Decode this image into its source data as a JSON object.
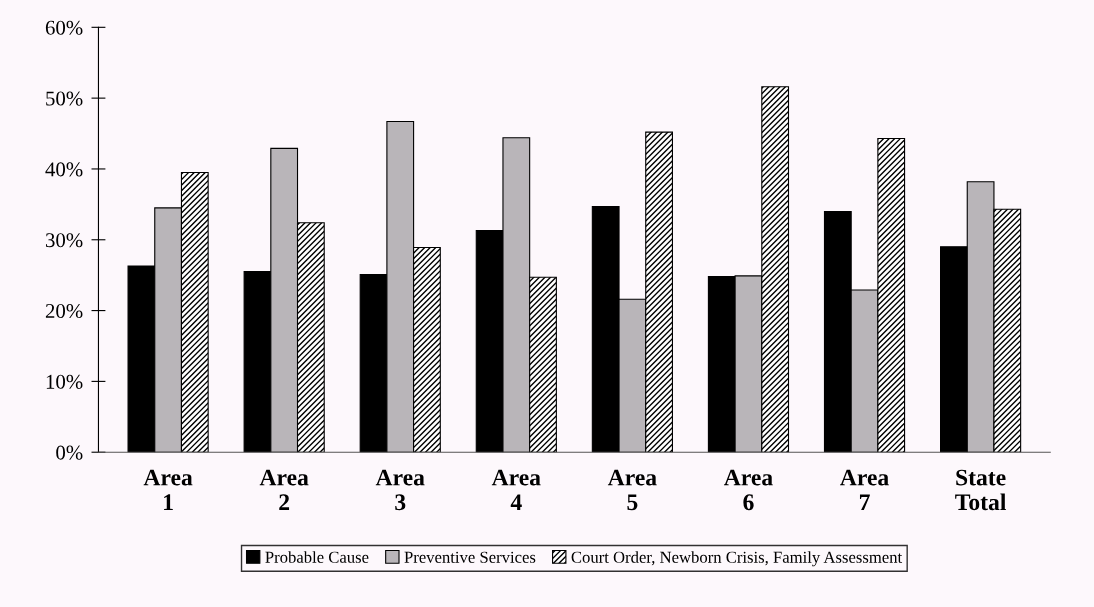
{
  "chart_data": {
    "type": "bar",
    "categories": [
      "Area\n1",
      "Area\n2",
      "Area\n3",
      "Area\n4",
      "Area\n5",
      "Area\n6",
      "Area\n7",
      "State\nTotal"
    ],
    "series": [
      {
        "name": "Probable Cause",
        "color": "#000000",
        "values": [
          26.3,
          25.5,
          25.1,
          31.3,
          34.7,
          24.8,
          34.0,
          29.0
        ]
      },
      {
        "name": "Preventive Services",
        "color": "#b9b5b9",
        "values": [
          34.5,
          42.9,
          46.7,
          44.4,
          21.6,
          24.9,
          22.9,
          38.2
        ]
      },
      {
        "name": "Court Order, Newborn Crisis, Family Assessment",
        "color": "#000000",
        "values": [
          39.5,
          32.4,
          28.9,
          24.7,
          45.2,
          51.6,
          44.3,
          34.3
        ]
      }
    ],
    "ylim": [
      0,
      60
    ],
    "yticks": [
      {
        "value": 0,
        "label": "0%"
      },
      {
        "value": 10,
        "label": "10%"
      },
      {
        "value": 20,
        "label": "20%"
      },
      {
        "value": 30,
        "label": "30%"
      },
      {
        "value": 40,
        "label": "40%"
      },
      {
        "value": 50,
        "label": "50%"
      },
      {
        "value": 60,
        "label": "60%"
      }
    ],
    "grid": false,
    "legend": "bottom"
  }
}
